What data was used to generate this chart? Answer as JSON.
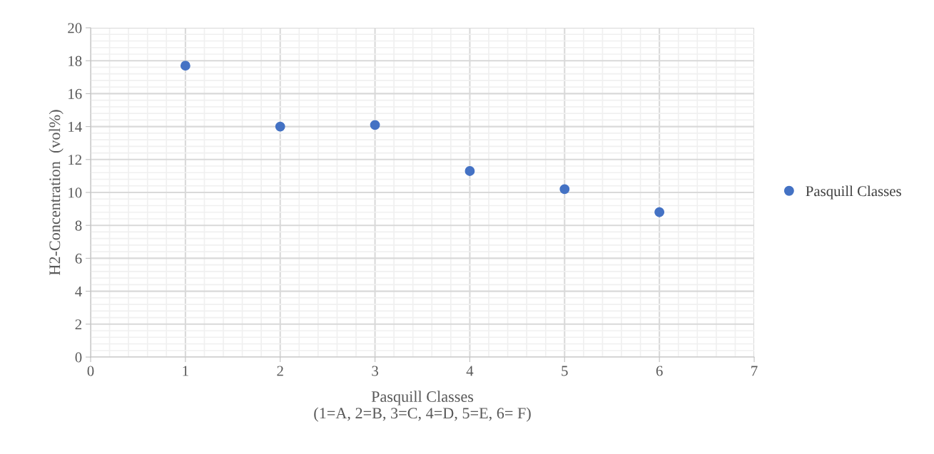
{
  "chart_data": {
    "type": "scatter",
    "xlabel": "Pasquill Classes\n(1=A, 2=B, 3=C, 4=D, 5=E, 6= F)",
    "ylabel": "H2-Concentration  (vol%)",
    "x": [
      1,
      2,
      3,
      4,
      5,
      6
    ],
    "series": [
      {
        "name": "Pasquill Classes",
        "color": "#4472c4",
        "values": [
          17.7,
          14.0,
          14.1,
          11.3,
          10.2,
          8.8
        ]
      }
    ],
    "xlim": [
      0,
      7
    ],
    "xticks": [
      0,
      1,
      2,
      3,
      4,
      5,
      6,
      7
    ],
    "ylim": [
      0,
      20
    ],
    "yticks": [
      0,
      2,
      4,
      6,
      8,
      10,
      12,
      14,
      16,
      18,
      20
    ],
    "grid": true,
    "legend": "right",
    "marker": "circle"
  }
}
